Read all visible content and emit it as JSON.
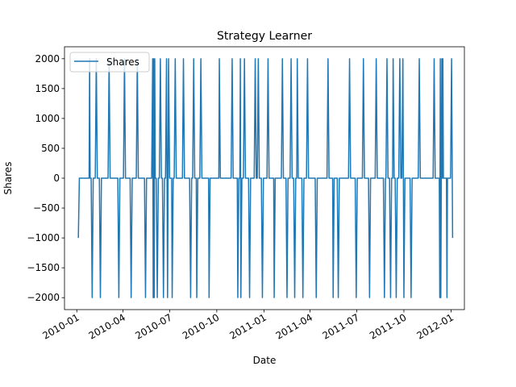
{
  "chart_data": {
    "type": "line",
    "title": "Strategy Learner",
    "xlabel": "Date",
    "ylabel": "Shares",
    "x_tick_labels": [
      "2010-01",
      "2010-04",
      "2010-07",
      "2010-10",
      "2011-01",
      "2011-04",
      "2011-07",
      "2011-10",
      "2012-01"
    ],
    "y_tick_labels": [
      "−2000",
      "−1500",
      "−1000",
      "−500",
      "0",
      "500",
      "1000",
      "1500",
      "2000"
    ],
    "y_ticks": [
      -2000,
      -1500,
      -1000,
      -500,
      0,
      500,
      1000,
      1500,
      2000
    ],
    "ylim": [
      -2200,
      2200
    ],
    "xlim_days": [
      -24,
      756
    ],
    "legend": {
      "position": "top-left",
      "entries": [
        "Shares"
      ]
    },
    "series": [
      {
        "name": "Shares",
        "color": "#1f77b4",
        "points": [
          [
            3,
            -1000
          ],
          [
            5,
            0
          ],
          [
            24,
            0
          ],
          [
            25,
            2000
          ],
          [
            26,
            0
          ],
          [
            28,
            0
          ],
          [
            30,
            -2000
          ],
          [
            32,
            0
          ],
          [
            36,
            0
          ],
          [
            38,
            2000
          ],
          [
            40,
            0
          ],
          [
            44,
            0
          ],
          [
            46,
            -2000
          ],
          [
            48,
            0
          ],
          [
            61,
            0
          ],
          [
            63,
            2000
          ],
          [
            65,
            0
          ],
          [
            80,
            0
          ],
          [
            82,
            -2000
          ],
          [
            84,
            0
          ],
          [
            91,
            0
          ],
          [
            93,
            2000
          ],
          [
            95,
            0
          ],
          [
            104,
            0
          ],
          [
            106,
            -2000
          ],
          [
            108,
            0
          ],
          [
            116,
            0
          ],
          [
            118,
            2000
          ],
          [
            120,
            0
          ],
          [
            132,
            0
          ],
          [
            134,
            -2000
          ],
          [
            136,
            0
          ],
          [
            146,
            0
          ],
          [
            148,
            2000
          ],
          [
            149,
            -2000
          ],
          [
            150,
            2000
          ],
          [
            151,
            -2000
          ],
          [
            152,
            2000
          ],
          [
            153,
            0
          ],
          [
            155,
            0
          ],
          [
            157,
            -2000
          ],
          [
            159,
            0
          ],
          [
            161,
            0
          ],
          [
            163,
            2000
          ],
          [
            165,
            0
          ],
          [
            167,
            0
          ],
          [
            169,
            -2000
          ],
          [
            171,
            0
          ],
          [
            173,
            0
          ],
          [
            175,
            2000
          ],
          [
            177,
            -2000
          ],
          [
            179,
            2000
          ],
          [
            181,
            0
          ],
          [
            185,
            0
          ],
          [
            186,
            -2000
          ],
          [
            188,
            0
          ],
          [
            190,
            0
          ],
          [
            192,
            2000
          ],
          [
            194,
            0
          ],
          [
            206,
            0
          ],
          [
            208,
            2000
          ],
          [
            210,
            0
          ],
          [
            220,
            0
          ],
          [
            222,
            -2000
          ],
          [
            224,
            0
          ],
          [
            226,
            0
          ],
          [
            228,
            2000
          ],
          [
            230,
            0
          ],
          [
            233,
            0
          ],
          [
            234,
            -2000
          ],
          [
            236,
            0
          ],
          [
            240,
            0
          ],
          [
            242,
            2000
          ],
          [
            244,
            0
          ],
          [
            257,
            0
          ],
          [
            258,
            -2000
          ],
          [
            260,
            0
          ],
          [
            277,
            0
          ],
          [
            278,
            2000
          ],
          [
            280,
            0
          ],
          [
            301,
            0
          ],
          [
            303,
            2000
          ],
          [
            305,
            0
          ],
          [
            313,
            0
          ],
          [
            314,
            -2000
          ],
          [
            316,
            0
          ],
          [
            318,
            0
          ],
          [
            319,
            2000
          ],
          [
            320,
            -2000
          ],
          [
            322,
            0
          ],
          [
            325,
            0
          ],
          [
            327,
            2000
          ],
          [
            329,
            0
          ],
          [
            335,
            0
          ],
          [
            337,
            -2000
          ],
          [
            339,
            0
          ],
          [
            346,
            0
          ],
          [
            348,
            2000
          ],
          [
            350,
            0
          ],
          [
            352,
            0
          ],
          [
            354,
            2000
          ],
          [
            356,
            0
          ],
          [
            360,
            0
          ],
          [
            362,
            -2000
          ],
          [
            364,
            0
          ],
          [
            371,
            0
          ],
          [
            373,
            2000
          ],
          [
            375,
            0
          ],
          [
            384,
            0
          ],
          [
            385,
            -2000
          ],
          [
            387,
            0
          ],
          [
            399,
            0
          ],
          [
            401,
            2000
          ],
          [
            403,
            0
          ],
          [
            408,
            0
          ],
          [
            410,
            -2000
          ],
          [
            412,
            0
          ],
          [
            416,
            0
          ],
          [
            418,
            2000
          ],
          [
            420,
            0
          ],
          [
            423,
            0
          ],
          [
            425,
            -2000
          ],
          [
            427,
            0
          ],
          [
            429,
            0
          ],
          [
            430,
            2000
          ],
          [
            432,
            0
          ],
          [
            439,
            0
          ],
          [
            441,
            -2000
          ],
          [
            443,
            0
          ],
          [
            448,
            0
          ],
          [
            450,
            2000
          ],
          [
            452,
            0
          ],
          [
            465,
            0
          ],
          [
            467,
            -2000
          ],
          [
            469,
            0
          ],
          [
            488,
            0
          ],
          [
            490,
            2000
          ],
          [
            492,
            0
          ],
          [
            499,
            0
          ],
          [
            500,
            -2000
          ],
          [
            502,
            0
          ],
          [
            508,
            0
          ],
          [
            510,
            -2000
          ],
          [
            512,
            0
          ],
          [
            530,
            0
          ],
          [
            532,
            2000
          ],
          [
            534,
            0
          ],
          [
            543,
            0
          ],
          [
            545,
            -2000
          ],
          [
            547,
            0
          ],
          [
            557,
            0
          ],
          [
            559,
            2000
          ],
          [
            561,
            0
          ],
          [
            569,
            0
          ],
          [
            571,
            -2000
          ],
          [
            573,
            0
          ],
          [
            582,
            0
          ],
          [
            584,
            2000
          ],
          [
            586,
            0
          ],
          [
            598,
            0
          ],
          [
            600,
            -2000
          ],
          [
            602,
            0
          ],
          [
            603,
            0
          ],
          [
            605,
            2000
          ],
          [
            607,
            0
          ],
          [
            610,
            0
          ],
          [
            612,
            -2000
          ],
          [
            614,
            0
          ],
          [
            616,
            0
          ],
          [
            617,
            2000
          ],
          [
            619,
            0
          ],
          [
            621,
            0
          ],
          [
            623,
            -2000
          ],
          [
            625,
            0
          ],
          [
            628,
            0
          ],
          [
            630,
            2000
          ],
          [
            632,
            0
          ],
          [
            634,
            0
          ],
          [
            636,
            2000
          ],
          [
            638,
            -2000
          ],
          [
            640,
            0
          ],
          [
            650,
            0
          ],
          [
            652,
            -2000
          ],
          [
            654,
            0
          ],
          [
            666,
            0
          ],
          [
            668,
            2000
          ],
          [
            670,
            0
          ],
          [
            695,
            0
          ],
          [
            697,
            2000
          ],
          [
            699,
            0
          ],
          [
            707,
            0
          ],
          [
            708,
            -2000
          ],
          [
            709,
            2000
          ],
          [
            710,
            -2000
          ],
          [
            711,
            0
          ],
          [
            712,
            2000
          ],
          [
            713,
            0
          ],
          [
            714,
            2000
          ],
          [
            715,
            0
          ],
          [
            721,
            0
          ],
          [
            722,
            -2000
          ],
          [
            723,
            0
          ],
          [
            729,
            0
          ],
          [
            731,
            2000
          ],
          [
            733,
            -1000
          ]
        ]
      }
    ]
  }
}
